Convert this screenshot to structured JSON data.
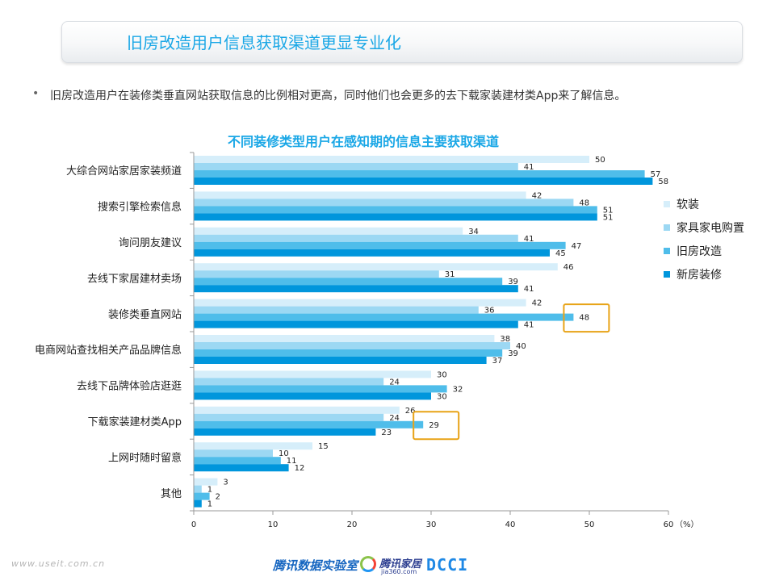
{
  "header": {
    "title": "旧房改造用户信息获取渠道更显专业化"
  },
  "bullet": {
    "dot": "•",
    "text": "旧房改造用户在装修类垂直网站获取信息的比例相对更高，同时他们也会更多的去下载家装建材类App来了解信息。"
  },
  "chart_data": {
    "type": "bar",
    "orientation": "horizontal",
    "title": "不同装修类型用户在感知期的信息主要获取渠道",
    "xlabel": "（%）",
    "ylabel": "",
    "xlim": [
      0,
      60
    ],
    "xticks": [
      0,
      10,
      20,
      30,
      40,
      50,
      60
    ],
    "legend_position": "right",
    "categories": [
      "大综合网站家居家装频道",
      "搜索引擎检索信息",
      "询问朋友建议",
      "去线下家居建材卖场",
      "装修类垂直网站",
      "电商网站查找相关产品品牌信息",
      "去线下品牌体验店逛逛",
      "下载家装建材类App",
      "上网时随时留意",
      "其他"
    ],
    "series": [
      {
        "name": "软装",
        "color": "#d6eefa",
        "values": [
          50,
          42,
          34,
          46,
          42,
          38,
          30,
          26,
          15,
          3
        ]
      },
      {
        "name": "家具家电购置",
        "color": "#9cd8f3",
        "values": [
          41,
          48,
          41,
          31,
          36,
          40,
          24,
          24,
          10,
          1
        ]
      },
      {
        "name": "旧房改造",
        "color": "#4fbdea",
        "values": [
          57,
          51,
          47,
          39,
          48,
          39,
          32,
          29,
          11,
          2
        ]
      },
      {
        "name": "新房装修",
        "color": "#0096dc",
        "values": [
          58,
          51,
          45,
          41,
          41,
          37,
          30,
          23,
          12,
          1
        ]
      }
    ],
    "highlights": [
      {
        "category": "装修类垂直网站",
        "series": "旧房改造",
        "value": 48,
        "color": "#e8a317"
      },
      {
        "category": "下载家装建材类App",
        "series": "旧房改造",
        "value": 29,
        "color": "#e8a317"
      }
    ],
    "grid": false
  },
  "footer": {
    "url": "www.useit.com.cn",
    "lab": "腾讯数据实验室",
    "home": "腾讯家居",
    "home_sub": "jia360.com",
    "dcci": "DCCI"
  }
}
